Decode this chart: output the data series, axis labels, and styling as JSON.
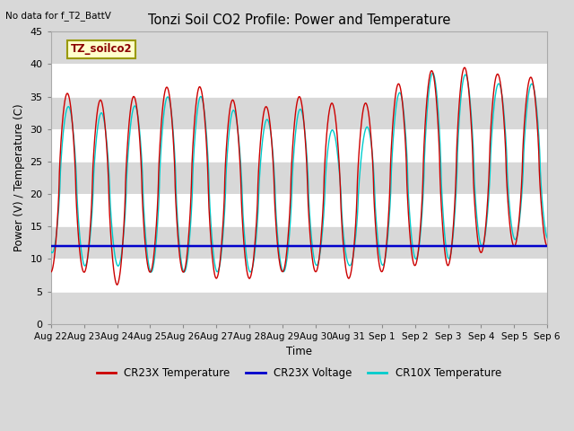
{
  "title": "Tonzi Soil CO2 Profile: Power and Temperature",
  "subtitle": "No data for f_T2_BattV",
  "ylabel": "Power (V) / Temperature (C)",
  "xlabel": "Time",
  "legend_label": "TZ_soilco2",
  "ylim": [
    0,
    45
  ],
  "yticks": [
    0,
    5,
    10,
    15,
    20,
    25,
    30,
    35,
    40,
    45
  ],
  "x_tick_labels": [
    "Aug 22",
    "Aug 23",
    "Aug 24",
    "Aug 25",
    "Aug 26",
    "Aug 27",
    "Aug 28",
    "Aug 29",
    "Aug 30",
    "Aug 31",
    "Sep 1",
    "Sep 2",
    "Sep 3",
    "Sep 4",
    "Sep 5",
    "Sep 6"
  ],
  "cr23x_temp_color": "#cc0000",
  "cr23x_volt_color": "#0000cc",
  "cr10x_temp_color": "#00cccc",
  "background_color": "#d8d8d8",
  "plot_bg_color": "#d8d8d8",
  "n_days": 15,
  "voltage_value": 12.0,
  "grid_color": "#ffffff",
  "legend_entries": [
    "CR23X Temperature",
    "CR23X Voltage",
    "CR10X Temperature"
  ],
  "band_colors": [
    "#d8d8d8",
    "#e8e8e8"
  ]
}
